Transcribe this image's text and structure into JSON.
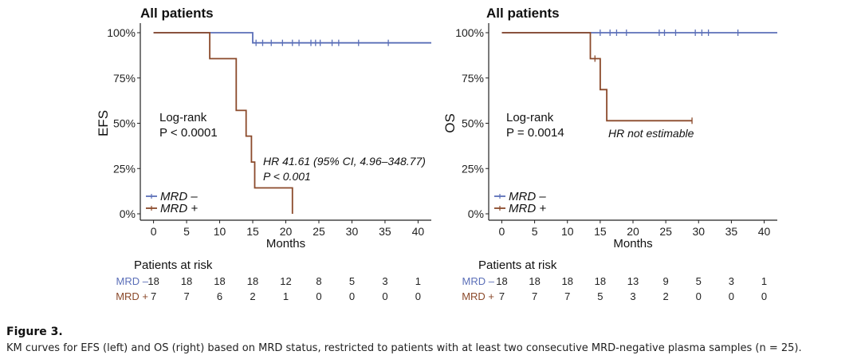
{
  "chart_data": [
    {
      "type": "line",
      "id": "efs",
      "title": "All patients",
      "xlabel": "Months",
      "ylabel": "EFS",
      "xlim": [
        -2,
        42
      ],
      "ylim": [
        0,
        100
      ],
      "xticks": [
        "0",
        "5",
        "10",
        "15",
        "20",
        "25",
        "30",
        "35",
        "40"
      ],
      "yticks": [
        "0%",
        "25%",
        "50%",
        "75%",
        "100%"
      ],
      "series": [
        {
          "name": "MRD –",
          "color": "#5b6fb8",
          "steps": [
            [
              0,
              100
            ],
            [
              15,
              100
            ],
            [
              15,
              94.4
            ],
            [
              42,
              94.4
            ]
          ],
          "censor_x": [
            15.5,
            16.5,
            17.8,
            19.5,
            21,
            22,
            23.8,
            24.5,
            25.2,
            27,
            28,
            31,
            35.5
          ]
        },
        {
          "name": "MRD +",
          "color": "#8b4a2b",
          "steps": [
            [
              0,
              100
            ],
            [
              8.5,
              100
            ],
            [
              8.5,
              85.7
            ],
            [
              12.5,
              85.7
            ],
            [
              12.5,
              57.1
            ],
            [
              14,
              57.1
            ],
            [
              14,
              42.9
            ],
            [
              14.8,
              42.9
            ],
            [
              14.8,
              28.6
            ],
            [
              15.3,
              28.6
            ],
            [
              15.3,
              14.3
            ],
            [
              21,
              14.3
            ],
            [
              21,
              0
            ]
          ],
          "censor_x": []
        }
      ],
      "logrank": {
        "line1": "Log-rank",
        "line2": "P < 0.0001"
      },
      "hr": {
        "line1": "HR 41.61 (95% CI, 4.96–348.77)",
        "line2": "P < 0.001"
      },
      "risk_table": {
        "title": "Patients at risk",
        "rows": [
          {
            "label": "MRD –",
            "color": "#5b6fb8",
            "values": [
              "18",
              "18",
              "18",
              "18",
              "12",
              "8",
              "5",
              "3",
              "1"
            ]
          },
          {
            "label": "MRD +",
            "color": "#8b4a2b",
            "values": [
              "7",
              "7",
              "6",
              "2",
              "1",
              "0",
              "0",
              "0",
              "0"
            ]
          }
        ]
      }
    },
    {
      "type": "line",
      "id": "os",
      "title": "All patients",
      "xlabel": "Months",
      "ylabel": "OS",
      "xlim": [
        -2,
        42
      ],
      "ylim": [
        0,
        100
      ],
      "xticks": [
        "0",
        "5",
        "10",
        "15",
        "20",
        "25",
        "30",
        "35",
        "40"
      ],
      "yticks": [
        "0%",
        "25%",
        "50%",
        "75%",
        "100%"
      ],
      "series": [
        {
          "name": "MRD –",
          "color": "#5b6fb8",
          "steps": [
            [
              0,
              100
            ],
            [
              42,
              100
            ]
          ],
          "censor_x": [
            15,
            16.5,
            17.5,
            19,
            24,
            24.8,
            26.5,
            29.5,
            30.5,
            31.5,
            36
          ]
        },
        {
          "name": "MRD +",
          "color": "#8b4a2b",
          "steps": [
            [
              0,
              100
            ],
            [
              13.5,
              100
            ],
            [
              13.5,
              85.7
            ],
            [
              15,
              85.7
            ],
            [
              15,
              68.6
            ],
            [
              16,
              68.6
            ],
            [
              16,
              51.4
            ],
            [
              29,
              51.4
            ]
          ],
          "censor_x": [
            14.2,
            29
          ]
        }
      ],
      "logrank": {
        "line1": "Log-rank",
        "line2": "P = 0.0014"
      },
      "hr": {
        "line1": "HR not estimable",
        "line2": ""
      },
      "risk_table": {
        "title": "Patients at risk",
        "rows": [
          {
            "label": "MRD –",
            "color": "#5b6fb8",
            "values": [
              "18",
              "18",
              "18",
              "18",
              "13",
              "9",
              "5",
              "3",
              "1"
            ]
          },
          {
            "label": "MRD +",
            "color": "#8b4a2b",
            "values": [
              "7",
              "7",
              "7",
              "5",
              "3",
              "2",
              "0",
              "0",
              "0"
            ]
          }
        ]
      }
    }
  ],
  "caption": {
    "title": "Figure 3.",
    "text": "KM curves for EFS (left) and OS (right) based on MRD status, restricted to patients with at least two consecutive MRD-negative plasma samples (n = 25)."
  }
}
